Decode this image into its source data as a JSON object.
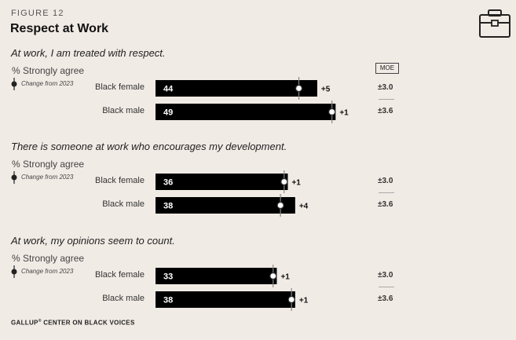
{
  "figure_label": "FIGURE 12",
  "title": "Respect at Work",
  "strongly_agree_label": "% Strongly agree",
  "change_label": "Change from 2023",
  "moe_label": "MOE",
  "footer_brand": "GALLUP",
  "footer_mark": "®",
  "footer_rest": " CENTER ON BLACK VOICES",
  "colors": {
    "bar": "#000000",
    "background": "#f1ebe5"
  },
  "chart_data": {
    "type": "bar",
    "panels": [
      {
        "question": "At work, I am treated with respect.",
        "rows": [
          {
            "group": "Black female",
            "value": 44,
            "change": "+5",
            "moe": "±3.0"
          },
          {
            "group": "Black male",
            "value": 49,
            "change": "+1",
            "moe": "±3.6"
          }
        ]
      },
      {
        "question": "There is someone at work who encourages my development.",
        "rows": [
          {
            "group": "Black female",
            "value": 36,
            "change": "+1",
            "moe": "±3.0"
          },
          {
            "group": "Black male",
            "value": 38,
            "change": "+4",
            "moe": "±3.6"
          }
        ]
      },
      {
        "question": "At work, my opinions seem to count.",
        "rows": [
          {
            "group": "Black female",
            "value": 33,
            "change": "+1",
            "moe": "±3.0"
          },
          {
            "group": "Black male",
            "value": 38,
            "change": "+1",
            "moe": "±3.6"
          }
        ]
      }
    ]
  }
}
